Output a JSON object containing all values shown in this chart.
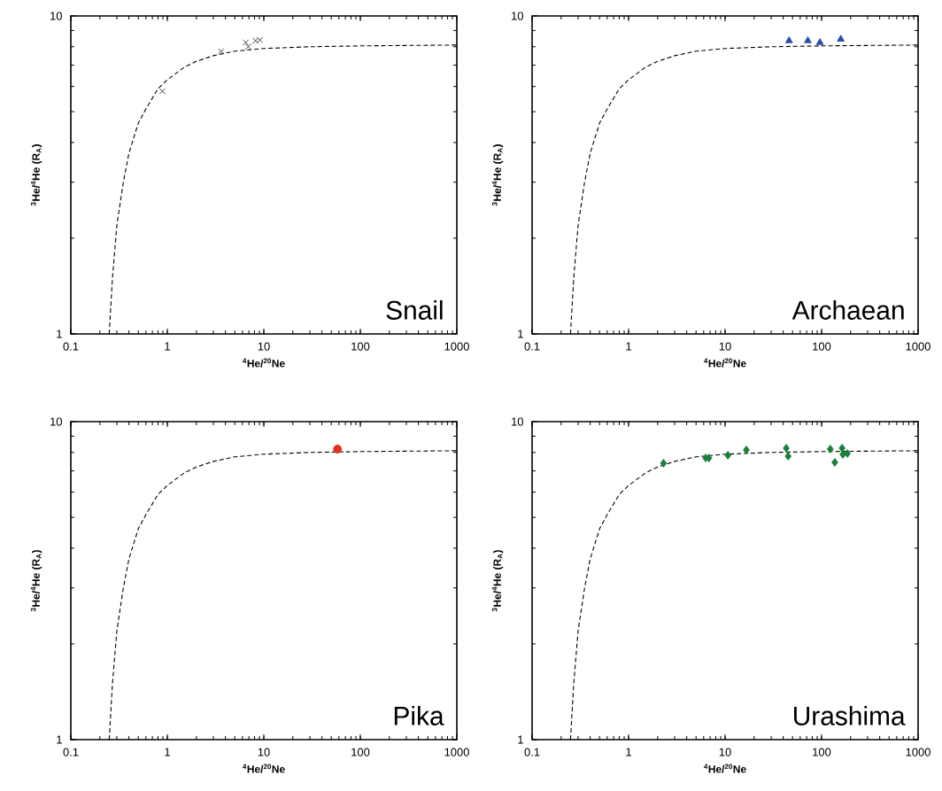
{
  "chart_data": [
    {
      "type": "scatter",
      "xlabel": "$^{4}$He/$^{20}$Ne",
      "ylabel": "$^{3}$He/$^{4}$He (R$_{A}$)",
      "annotations": [
        "Snail"
      ],
      "log": "xy",
      "xlim": [
        0.1,
        1000
      ],
      "ylim": [
        1,
        10
      ],
      "xticks": [
        0.1,
        1,
        10,
        100,
        1000
      ],
      "yticks": [
        1,
        10
      ],
      "series": [
        {
          "type": "line",
          "color": "#000000",
          "marker": "none",
          "line_style": "dashed",
          "x": [
            0.25,
            0.27,
            0.3,
            0.35,
            0.4,
            0.5,
            0.6,
            0.8,
            1,
            1.5,
            2,
            3,
            5,
            10,
            30,
            100,
            1000
          ],
          "values": [
            1,
            1.5,
            2.2,
            3.0,
            3.7,
            4.6,
            5.1,
            5.9,
            6.3,
            6.9,
            7.2,
            7.5,
            7.75,
            7.9,
            8.0,
            8.05,
            8.1
          ]
        },
        {
          "color": "#333333",
          "marker": "cross",
          "x": [
            0.89,
            3.6,
            6.5,
            6.9,
            8.2,
            9.1
          ],
          "values": [
            5.8,
            7.74,
            8.25,
            8.0,
            8.36,
            8.4
          ]
        }
      ]
    },
    {
      "type": "scatter",
      "xlabel": "$^{4}$He/$^{20}$Ne",
      "ylabel": "$^{3}$He/$^{4}$He (R$_{A}$)",
      "annotations": [
        "Archaean"
      ],
      "log": "xy",
      "xlim": [
        0.1,
        1000
      ],
      "ylim": [
        1,
        10
      ],
      "xticks": [
        0.1,
        1,
        10,
        100,
        1000
      ],
      "yticks": [
        1,
        10
      ],
      "series": [
        {
          "type": "line",
          "color": "#000000",
          "marker": "none",
          "line_style": "dashed",
          "x": [
            0.25,
            0.27,
            0.3,
            0.35,
            0.4,
            0.5,
            0.6,
            0.8,
            1,
            1.5,
            2,
            3,
            5,
            10,
            30,
            100,
            1000
          ],
          "values": [
            1,
            1.5,
            2.2,
            3.0,
            3.7,
            4.6,
            5.1,
            5.9,
            6.3,
            6.9,
            7.2,
            7.5,
            7.75,
            7.9,
            8.0,
            8.05,
            8.1
          ]
        },
        {
          "color": "#2a4ea0",
          "marker": "triangle",
          "x": [
            46,
            72,
            96,
            158
          ],
          "values": [
            8.36,
            8.36,
            8.25,
            8.45
          ]
        }
      ]
    },
    {
      "type": "scatter",
      "xlabel": "$^{4}$He/$^{20}$Ne",
      "ylabel": "$^{3}$He/$^{4}$He (R$_{A}$)",
      "annotations": [
        "Pika"
      ],
      "log": "xy",
      "xlim": [
        0.1,
        1000
      ],
      "ylim": [
        1,
        10
      ],
      "xticks": [
        0.1,
        1,
        10,
        100,
        1000
      ],
      "yticks": [
        1,
        10
      ],
      "series": [
        {
          "type": "line",
          "color": "#000000",
          "marker": "none",
          "line_style": "dashed",
          "x": [
            0.25,
            0.27,
            0.3,
            0.35,
            0.4,
            0.5,
            0.6,
            0.8,
            1,
            1.5,
            2,
            3,
            5,
            10,
            30,
            100,
            1000
          ],
          "values": [
            1,
            1.5,
            2.2,
            3.0,
            3.7,
            4.6,
            5.1,
            5.9,
            6.3,
            6.9,
            7.2,
            7.5,
            7.75,
            7.9,
            8.0,
            8.05,
            8.1
          ]
        },
        {
          "color": "#e0301e",
          "marker": "circle",
          "x": [
            58
          ],
          "values": [
            8.2
          ]
        }
      ]
    },
    {
      "type": "scatter",
      "xlabel": "$^{4}$He/$^{20}$Ne",
      "ylabel": "$^{3}$He/$^{4}$He (R$_{A}$)",
      "annotations": [
        "Urashima"
      ],
      "log": "xy",
      "xlim": [
        0.1,
        1000
      ],
      "ylim": [
        1,
        10
      ],
      "xticks": [
        0.1,
        1,
        10,
        100,
        1000
      ],
      "yticks": [
        1,
        10
      ],
      "series": [
        {
          "type": "line",
          "color": "#000000",
          "marker": "none",
          "line_style": "dashed",
          "x": [
            0.25,
            0.27,
            0.3,
            0.35,
            0.4,
            0.5,
            0.6,
            0.8,
            1,
            1.5,
            2,
            3,
            5,
            10,
            30,
            100,
            1000
          ],
          "values": [
            1,
            1.5,
            2.2,
            3.0,
            3.7,
            4.6,
            5.1,
            5.9,
            6.3,
            6.9,
            7.2,
            7.5,
            7.75,
            7.9,
            8.0,
            8.05,
            8.1
          ]
        },
        {
          "color": "#1e7e3e",
          "marker": "diamond",
          "x": [
            2.3,
            6.3,
            6.8,
            10.7,
            16.6,
            43,
            45,
            123,
            137,
            163,
            166,
            185
          ],
          "values": [
            7.4,
            7.69,
            7.69,
            7.84,
            8.15,
            8.25,
            7.79,
            8.2,
            7.45,
            8.25,
            7.89,
            7.94
          ]
        }
      ]
    }
  ]
}
